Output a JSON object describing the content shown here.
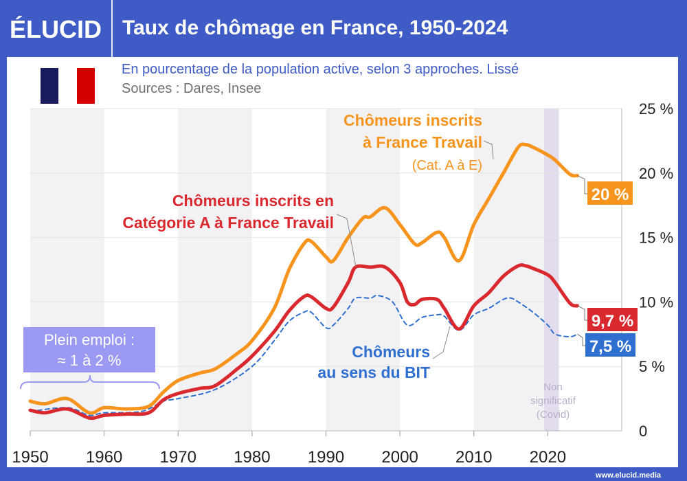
{
  "header": {
    "logo": "ÉLUCID",
    "title": "Taux de chômage en France, 1950-2024"
  },
  "subtitle": "En pourcentage de la population active, selon 3 approches. Lissé",
  "sources": "Sources : Dares, Insee",
  "flag_colors": [
    "#1a1a5e",
    "#ffffff",
    "#d40000"
  ],
  "footer": "www.elucid.media",
  "chart_data": {
    "type": "line",
    "xlim": [
      1950,
      2030
    ],
    "ylim": [
      0,
      25
    ],
    "x_ticks": [
      "1950",
      "1960",
      "1970",
      "1980",
      "1990",
      "2000",
      "2010",
      "2020"
    ],
    "y_ticks": [
      "0",
      "5 %",
      "10 %",
      "15 %",
      "20 %",
      "25 %"
    ],
    "series": [
      {
        "name": "Chômeurs inscrits à France Travail (Cat. A à E)",
        "color": "#f7941d",
        "style": "solid",
        "end_label": "20 %",
        "points": [
          [
            1950,
            2.3
          ],
          [
            1952,
            2.1
          ],
          [
            1955,
            2.5
          ],
          [
            1958,
            1.4
          ],
          [
            1960,
            1.8
          ],
          [
            1963,
            1.7
          ],
          [
            1966,
            1.9
          ],
          [
            1968,
            3
          ],
          [
            1970,
            3.9
          ],
          [
            1973,
            4.5
          ],
          [
            1975,
            4.8
          ],
          [
            1978,
            6
          ],
          [
            1980,
            7
          ],
          [
            1983,
            9.5
          ],
          [
            1985,
            12.5
          ],
          [
            1987,
            14.5
          ],
          [
            1988,
            14.7
          ],
          [
            1990,
            13.5
          ],
          [
            1991,
            13.2
          ],
          [
            1993,
            15
          ],
          [
            1995,
            16.5
          ],
          [
            1996,
            16.6
          ],
          [
            1998,
            17.3
          ],
          [
            2000,
            16
          ],
          [
            2002,
            14.5
          ],
          [
            2003,
            14.6
          ],
          [
            2005,
            15.4
          ],
          [
            2006,
            15
          ],
          [
            2008,
            13.2
          ],
          [
            2010,
            16
          ],
          [
            2012,
            18
          ],
          [
            2014,
            20
          ],
          [
            2016,
            22
          ],
          [
            2017,
            22.2
          ],
          [
            2018,
            22
          ],
          [
            2020,
            21.4
          ],
          [
            2021,
            21
          ],
          [
            2023,
            19.9
          ],
          [
            2024,
            19.8
          ]
        ]
      },
      {
        "name": "Chômeurs inscrits en Catégorie A à France Travail",
        "color": "#d9292e",
        "style": "solid",
        "end_label": "9,7 %",
        "points": [
          [
            1950,
            1.6
          ],
          [
            1952,
            1.4
          ],
          [
            1955,
            1.7
          ],
          [
            1958,
            1.0
          ],
          [
            1960,
            1.2
          ],
          [
            1963,
            1.3
          ],
          [
            1966,
            1.4
          ],
          [
            1968,
            2.4
          ],
          [
            1970,
            2.9
          ],
          [
            1973,
            3.3
          ],
          [
            1975,
            3.5
          ],
          [
            1978,
            4.8
          ],
          [
            1980,
            5.8
          ],
          [
            1983,
            7.7
          ],
          [
            1985,
            9.3
          ],
          [
            1987,
            10.4
          ],
          [
            1988,
            10.4
          ],
          [
            1990,
            9.5
          ],
          [
            1991,
            9.6
          ],
          [
            1993,
            11.5
          ],
          [
            1994,
            12.7
          ],
          [
            1996,
            12.7
          ],
          [
            1998,
            12.7
          ],
          [
            2000,
            11.5
          ],
          [
            2001,
            10
          ],
          [
            2002,
            9.8
          ],
          [
            2003,
            10.2
          ],
          [
            2005,
            10.2
          ],
          [
            2006,
            9.5
          ],
          [
            2008,
            7.9
          ],
          [
            2010,
            9.7
          ],
          [
            2012,
            10.7
          ],
          [
            2014,
            12
          ],
          [
            2016,
            12.8
          ],
          [
            2017,
            12.8
          ],
          [
            2018,
            12.6
          ],
          [
            2020,
            12.1
          ],
          [
            2021,
            11.5
          ],
          [
            2023,
            9.9
          ],
          [
            2024,
            9.7
          ]
        ]
      },
      {
        "name": "Chômeurs au sens du BIT",
        "color": "#2f6fd0",
        "style": "dashed",
        "end_label": "7,5 %",
        "points": [
          [
            1950,
            1.5
          ],
          [
            1955,
            1.8
          ],
          [
            1958,
            1.2
          ],
          [
            1960,
            1.4
          ],
          [
            1965,
            1.5
          ],
          [
            1968,
            2.3
          ],
          [
            1970,
            2.5
          ],
          [
            1975,
            3.2
          ],
          [
            1980,
            5
          ],
          [
            1983,
            7
          ],
          [
            1985,
            8.5
          ],
          [
            1987,
            9.2
          ],
          [
            1988,
            9.2
          ],
          [
            1990,
            8
          ],
          [
            1991,
            8.2
          ],
          [
            1993,
            9.5
          ],
          [
            1994,
            10.3
          ],
          [
            1996,
            10.3
          ],
          [
            1997,
            10.5
          ],
          [
            1999,
            10
          ],
          [
            2001,
            8.2
          ],
          [
            2003,
            8.8
          ],
          [
            2005,
            9
          ],
          [
            2006,
            8.9
          ],
          [
            2008,
            7.8
          ],
          [
            2010,
            9
          ],
          [
            2012,
            9.5
          ],
          [
            2014,
            10.2
          ],
          [
            2015,
            10.3
          ],
          [
            2016,
            10
          ],
          [
            2018,
            9.2
          ],
          [
            2020,
            8.2
          ],
          [
            2021,
            7.5
          ],
          [
            2023,
            7.3
          ],
          [
            2024,
            7.5
          ]
        ]
      }
    ],
    "annotations": {
      "orange": [
        "Chômeurs inscrits",
        "à France Travail",
        "(Cat. A à E)"
      ],
      "red": [
        "Chômeurs inscrits en",
        "Catégorie A à France Travail"
      ],
      "blue": [
        "Chômeurs",
        "au sens du BIT"
      ],
      "plein_emploi": [
        "Plein emploi :",
        "≈ 1 à 2 %"
      ],
      "covid": [
        "Non",
        "significatif",
        "(Covid)"
      ]
    },
    "covid_band": [
      2019.5,
      2021.5
    ],
    "plein_emploi_range": [
      1950,
      1967
    ]
  }
}
